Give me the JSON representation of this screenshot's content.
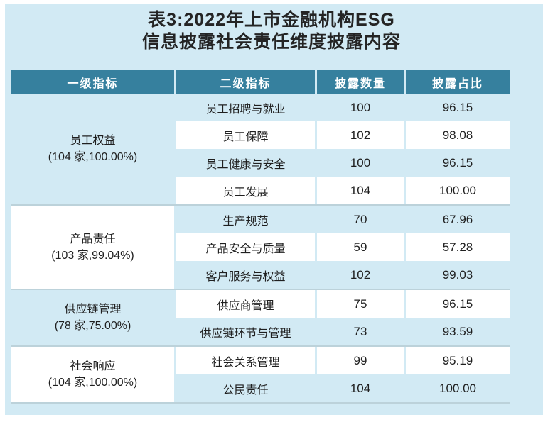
{
  "title": {
    "line1": "表3:2022年上市金融机构ESG",
    "line2": "信息披露社会责任维度披露内容"
  },
  "colors": {
    "page_bg": "#d2eaf4",
    "header_bg": "#36809e",
    "header_text": "#ffffff",
    "row_white": "#ffffff",
    "separator": "#bcd2da",
    "text": "#1f1f1f"
  },
  "chart_data": {
    "type": "table",
    "title": "表3:2022年上市金融机构ESG信息披露社会责任维度披露内容",
    "columns": [
      "一级指标",
      "二级指标",
      "披露数量",
      "披露占比"
    ],
    "groups": [
      {
        "indicator": "员工权益",
        "stat": "(104 家,100.00%)",
        "rows": [
          {
            "name": "员工招聘与就业",
            "count": "100",
            "ratio": "96.15"
          },
          {
            "name": "员工保障",
            "count": "102",
            "ratio": "98.08"
          },
          {
            "name": "员工健康与安全",
            "count": "100",
            "ratio": "96.15"
          },
          {
            "name": "员工发展",
            "count": "104",
            "ratio": "100.00"
          }
        ]
      },
      {
        "indicator": "产品责任",
        "stat": "(103 家,99.04%)",
        "rows": [
          {
            "name": "生产规范",
            "count": "70",
            "ratio": "67.96"
          },
          {
            "name": "产品安全与质量",
            "count": "59",
            "ratio": "57.28"
          },
          {
            "name": "客户服务与权益",
            "count": "102",
            "ratio": "99.03"
          }
        ]
      },
      {
        "indicator": "供应链管理",
        "stat": "(78 家,75.00%)",
        "rows": [
          {
            "name": "供应商管理",
            "count": "75",
            "ratio": "96.15"
          },
          {
            "name": "供应链环节与管理",
            "count": "73",
            "ratio": "93.59"
          }
        ]
      },
      {
        "indicator": "社会响应",
        "stat": "(104 家,100.00%)",
        "rows": [
          {
            "name": "社会关系管理",
            "count": "99",
            "ratio": "95.19"
          },
          {
            "name": "公民责任",
            "count": "104",
            "ratio": "100.00"
          }
        ]
      }
    ]
  }
}
